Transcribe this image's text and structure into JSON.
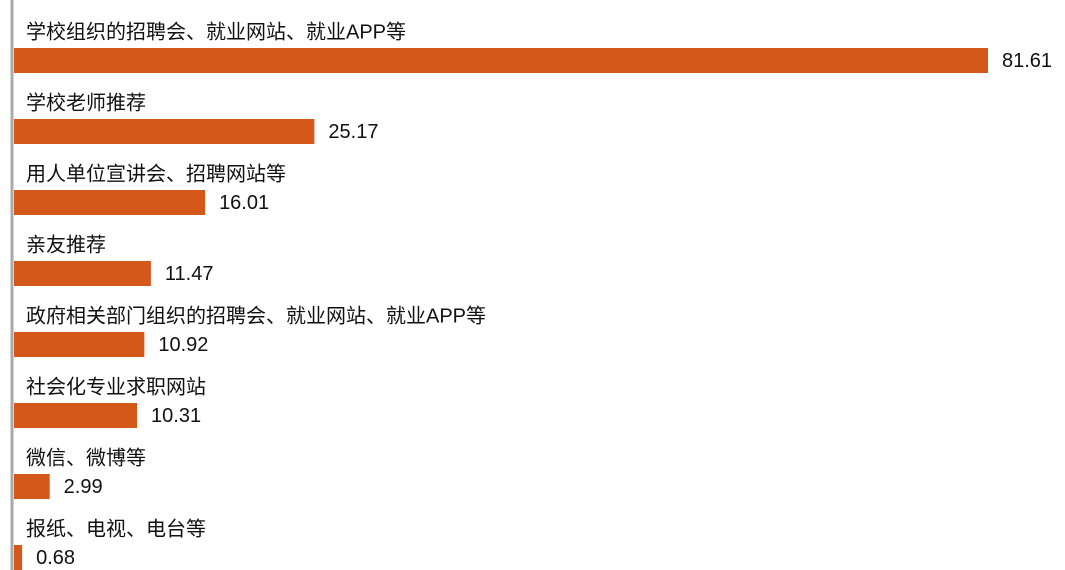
{
  "chart_data": {
    "type": "bar",
    "orientation": "horizontal",
    "categories": [
      "学校组织的招聘会、就业网站、就业APP等",
      "学校老师推荐",
      "用人单位宣讲会、招聘网站等",
      "亲友推荐",
      "政府相关部门组织的招聘会、就业网站、就业APP等",
      "社会化专业求职网站",
      "微信、微博等",
      "报纸、电视、电台等"
    ],
    "values": [
      81.61,
      25.17,
      16.01,
      11.47,
      10.92,
      10.31,
      2.99,
      0.68
    ],
    "color": "#d4581a"
  }
}
